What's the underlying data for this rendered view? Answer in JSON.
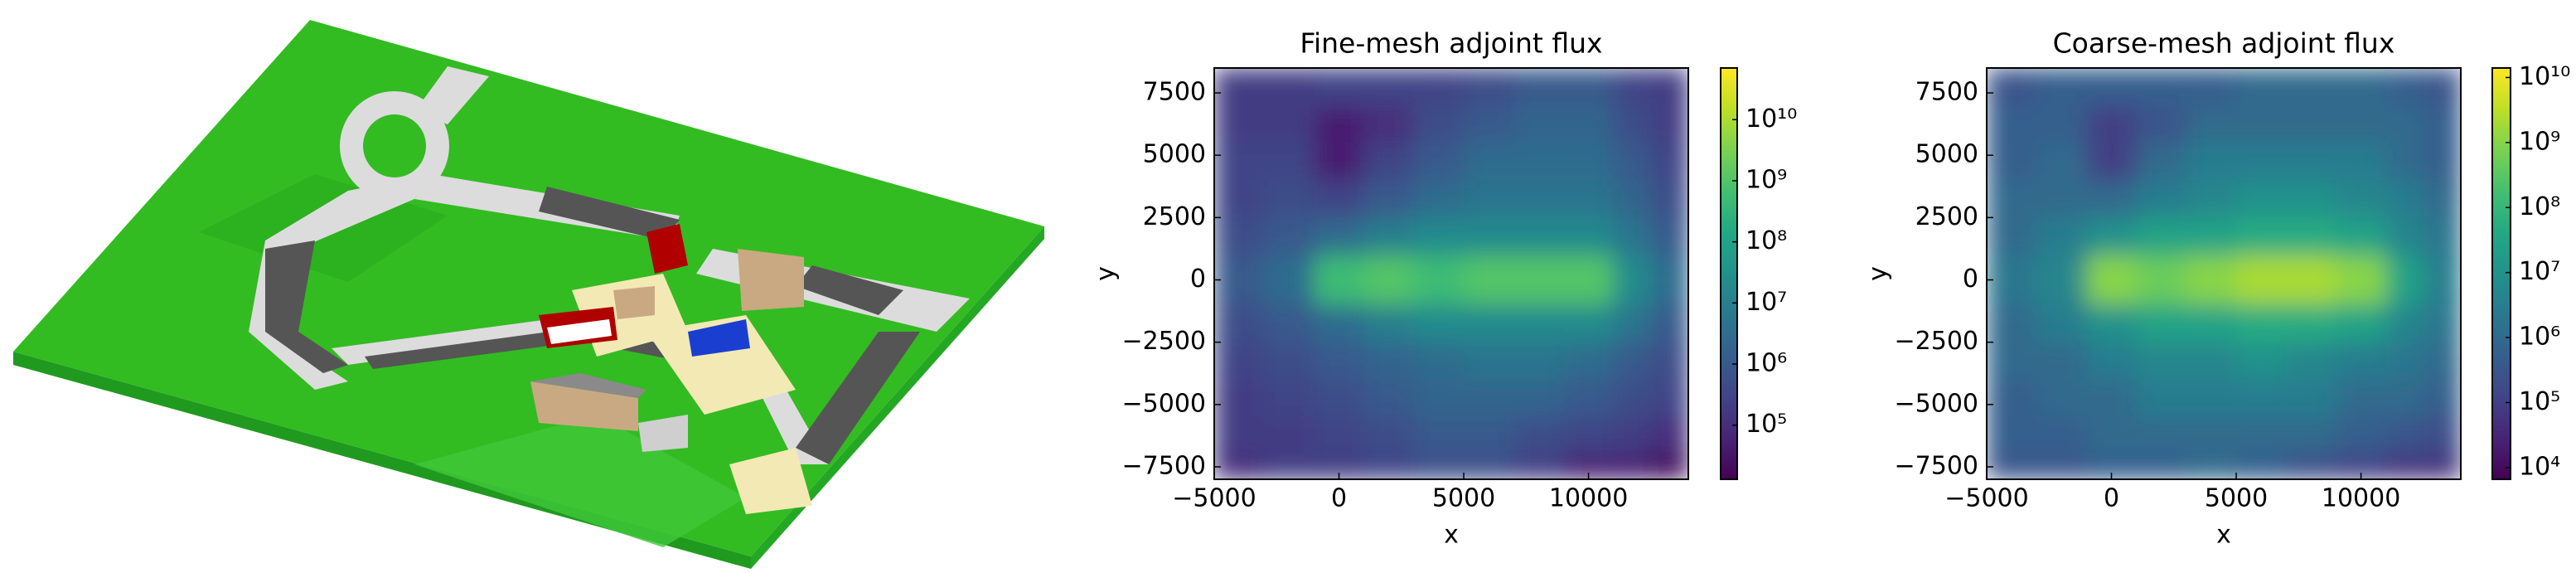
{
  "chart_data": [
    {
      "type": "heatmap",
      "title": "Fine-mesh adjoint flux",
      "xlabel": "x",
      "ylabel": "y",
      "colormap": "viridis",
      "log_color": true,
      "xlim": [
        -5000,
        14000
      ],
      "ylim": [
        -8000,
        8500
      ],
      "xticks": [
        {
          "value": -5000,
          "label": "−5000"
        },
        0,
        5000,
        10000
      ],
      "yticks": [
        {
          "value": -7500,
          "label": "−7500"
        },
        {
          "value": -5000,
          "label": "−5000"
        },
        {
          "value": -2500,
          "label": "−2500"
        },
        0,
        2500,
        5000,
        7500
      ],
      "clim": [
        13000,
        70000000000
      ],
      "cticks": [
        {
          "value": 100000,
          "label": "10⁵"
        },
        {
          "value": 1000000,
          "label": "10⁶"
        },
        {
          "value": 10000000,
          "label": "10⁷"
        },
        {
          "value": 100000000,
          "label": "10⁸"
        },
        {
          "value": 1000000000,
          "label": "10⁹"
        },
        {
          "value": 10000000000,
          "label": "10¹⁰"
        }
      ],
      "xbins": [
        -5000,
        -3000,
        -1000,
        1000,
        3000,
        5000,
        7000,
        9000,
        11000,
        12500,
        14000
      ],
      "ybins": [
        8500,
        7000,
        5500,
        4000,
        2500,
        1000,
        -1000,
        -2500,
        -4000,
        -5500,
        -7000,
        -8000
      ],
      "values": [
        [
          200000.0,
          200000.0,
          300000.0,
          300000.0,
          300000.0,
          500000.0,
          1000000.0,
          1000000.0,
          300000.0,
          200000.0
        ],
        [
          200000.0,
          200000.0,
          50000.0,
          100000.0,
          500000.0,
          1000000.0,
          2000000.0,
          2000000.0,
          500000.0,
          200000.0
        ],
        [
          300000.0,
          300000.0,
          50000.0,
          300000.0,
          1000000.0,
          3000000.0,
          3000000.0,
          3000000.0,
          1000000.0,
          300000.0
        ],
        [
          300000.0,
          500000.0,
          300000.0,
          1000000.0,
          3000000.0,
          5000000.0,
          5000000.0,
          5000000.0,
          2000000.0,
          500000.0
        ],
        [
          500000.0,
          1000000.0,
          3000000.0,
          10000000.0,
          20000000.0,
          20000000.0,
          20000000.0,
          20000000.0,
          5000000.0,
          1000000.0
        ],
        [
          1000000.0,
          3000000.0,
          500000000.0,
          1000000000.0,
          500000000.0,
          1000000000.0,
          1000000000.0,
          1000000000.0,
          20000000.0,
          3000000.0
        ],
        [
          500000.0,
          1000000.0,
          3000000.0,
          10000000.0,
          20000000.0,
          20000000.0,
          20000000.0,
          20000000.0,
          5000000.0,
          1000000.0
        ],
        [
          300000.0,
          500000.0,
          1000000.0,
          2000000.0,
          3000000.0,
          5000000.0,
          5000000.0,
          3000000.0,
          1000000.0,
          500000.0
        ],
        [
          200000.0,
          300000.0,
          500000.0,
          1000000.0,
          2000000.0,
          2000000.0,
          2000000.0,
          1000000.0,
          500000.0,
          300000.0
        ],
        [
          200000.0,
          200000.0,
          300000.0,
          500000.0,
          1000000.0,
          1000000.0,
          500000.0,
          300000.0,
          200000.0,
          100000.0
        ],
        [
          100000.0,
          200000.0,
          200000.0,
          300000.0,
          500000.0,
          500000.0,
          200000.0,
          50000.0,
          50000.0,
          20000.0
        ]
      ]
    },
    {
      "type": "heatmap",
      "title": "Coarse-mesh adjoint flux",
      "xlabel": "x",
      "ylabel": "y",
      "colormap": "viridis",
      "log_color": true,
      "xlim": [
        -5000,
        14000
      ],
      "ylim": [
        -8000,
        8500
      ],
      "xticks": [
        {
          "value": -5000,
          "label": "−5000"
        },
        0,
        5000,
        10000
      ],
      "yticks": [
        {
          "value": -7500,
          "label": "−7500"
        },
        {
          "value": -5000,
          "label": "−5000"
        },
        {
          "value": -2500,
          "label": "−2500"
        },
        0,
        2500,
        5000,
        7500
      ],
      "clim": [
        6600,
        14000000000
      ],
      "cticks": [
        {
          "value": 10000,
          "label": "10⁴"
        },
        {
          "value": 100000,
          "label": "10⁵"
        },
        {
          "value": 1000000,
          "label": "10⁶"
        },
        {
          "value": 10000000,
          "label": "10⁷"
        },
        {
          "value": 100000000,
          "label": "10⁸"
        },
        {
          "value": 1000000000,
          "label": "10⁹"
        },
        {
          "value": 10000000000,
          "label": "10¹⁰"
        }
      ],
      "xbins": [
        -5000,
        -3000,
        -1000,
        1000,
        3000,
        5000,
        7000,
        9000,
        11000,
        12500,
        14000
      ],
      "ybins": [
        8500,
        7000,
        5500,
        4000,
        2500,
        1000,
        -1000,
        -2500,
        -4000,
        -5500,
        -7000,
        -8000
      ],
      "values": [
        [
          300000.0,
          500000.0,
          500000.0,
          500000.0,
          500000.0,
          1000000.0,
          1000000.0,
          1000000.0,
          500000.0,
          300000.0
        ],
        [
          500000.0,
          500000.0,
          100000.0,
          300000.0,
          1000000.0,
          1000000.0,
          1000000.0,
          1000000.0,
          1000000.0,
          500000.0
        ],
        [
          500000.0,
          1000000.0,
          100000.0,
          1000000.0,
          3000000.0,
          3000000.0,
          3000000.0,
          3000000.0,
          1000000.0,
          500000.0
        ],
        [
          1000000.0,
          1000000.0,
          1000000.0,
          3000000.0,
          5000000.0,
          10000000.0,
          10000000.0,
          5000000.0,
          3000000.0,
          1000000.0
        ],
        [
          1000000.0,
          3000000.0,
          10000000.0,
          30000000.0,
          30000000.0,
          50000000.0,
          50000000.0,
          30000000.0,
          5000000.0,
          2000000.0
        ],
        [
          2000000.0,
          5000000.0,
          1000000000.0,
          500000000.0,
          1000000000.0,
          2000000000.0,
          2000000000.0,
          1000000000.0,
          30000000.0,
          3000000.0
        ],
        [
          1000000.0,
          3000000.0,
          10000000.0,
          30000000.0,
          30000000.0,
          50000000.0,
          50000000.0,
          30000000.0,
          5000000.0,
          2000000.0
        ],
        [
          1000000.0,
          1000000.0,
          3000000.0,
          5000000.0,
          5000000.0,
          10000000.0,
          5000000.0,
          3000000.0,
          2000000.0,
          1000000.0
        ],
        [
          500000.0,
          1000000.0,
          1000000.0,
          3000000.0,
          3000000.0,
          3000000.0,
          3000000.0,
          1000000.0,
          1000000.0,
          500000.0
        ],
        [
          500000.0,
          500000.0,
          1000000.0,
          1000000.0,
          1000000.0,
          1000000.0,
          1000000.0,
          500000.0,
          300000.0,
          200000.0
        ],
        [
          300000.0,
          300000.0,
          500000.0,
          500000.0,
          1000000.0,
          500000.0,
          200000.0,
          100000.0,
          50000.0,
          50000.0
        ]
      ]
    }
  ]
}
